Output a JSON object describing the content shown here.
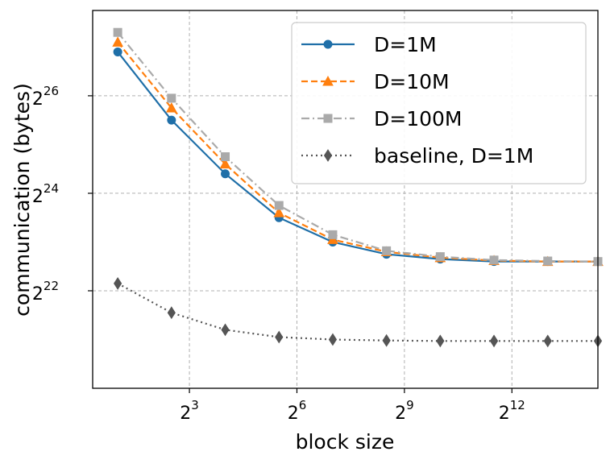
{
  "chart_data": {
    "type": "line",
    "xlabel": "block size",
    "ylabel": "communication (bytes)",
    "xscale": "log2",
    "yscale": "log2",
    "xlim_log2": [
      0.3,
      14.4
    ],
    "ylim_log2": [
      20.0,
      27.75
    ],
    "x_log2": [
      1.0,
      2.5,
      4.0,
      5.5,
      7.0,
      8.5,
      10.0,
      11.5,
      13.0,
      14.4
    ],
    "xticks": [
      {
        "base": "2",
        "exp": "3",
        "value_log2": 3
      },
      {
        "base": "2",
        "exp": "6",
        "value_log2": 6
      },
      {
        "base": "2",
        "exp": "9",
        "value_log2": 9
      },
      {
        "base": "2",
        "exp": "12",
        "value_log2": 12
      }
    ],
    "yticks": [
      {
        "base": "2",
        "exp": "22",
        "value_log2": 22
      },
      {
        "base": "2",
        "exp": "24",
        "value_log2": 24
      },
      {
        "base": "2",
        "exp": "26",
        "value_log2": 26
      }
    ],
    "grid": true,
    "legend_position": "top-right",
    "series": [
      {
        "name": "D=1M",
        "color": "#1f6fa8",
        "marker": "circle",
        "dash": "solid",
        "y_log2": [
          26.9,
          25.5,
          24.4,
          23.5,
          23.0,
          22.75,
          22.65,
          22.6,
          22.6,
          22.6
        ]
      },
      {
        "name": "D=10M",
        "color": "#ff7f0e",
        "marker": "triangle",
        "dash": "dashed",
        "y_log2": [
          27.1,
          25.75,
          24.6,
          23.6,
          23.05,
          22.8,
          22.68,
          22.62,
          22.6,
          22.6
        ]
      },
      {
        "name": "D=100M",
        "color": "#aaaaaa",
        "marker": "square",
        "dash": "dashdot",
        "y_log2": [
          27.3,
          25.95,
          24.75,
          23.75,
          23.15,
          22.82,
          22.7,
          22.63,
          22.61,
          22.6
        ]
      },
      {
        "name": "baseline, D=1M",
        "color": "#555555",
        "marker": "diamond",
        "dash": "dotted",
        "y_log2": [
          22.15,
          21.55,
          21.2,
          21.05,
          21.0,
          20.98,
          20.97,
          20.97,
          20.97,
          20.97
        ]
      }
    ]
  }
}
